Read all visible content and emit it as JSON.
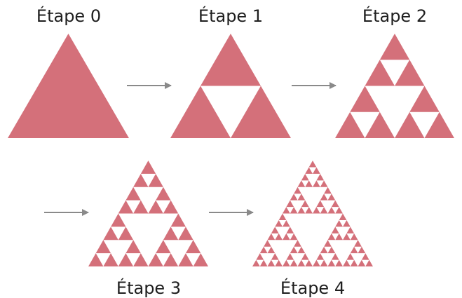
{
  "colors": {
    "fill": "#d4707a",
    "arrow": "#8a8a8a",
    "text": "#1f1f1f"
  },
  "stages": [
    {
      "label": "Étape 0",
      "depth": 0
    },
    {
      "label": "Étape 1",
      "depth": 1
    },
    {
      "label": "Étape 2",
      "depth": 2
    },
    {
      "label": "Étape 3",
      "depth": 3
    },
    {
      "label": "Étape 4",
      "depth": 4
    }
  ],
  "arrows": 4
}
